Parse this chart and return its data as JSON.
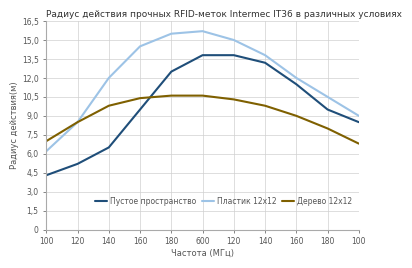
{
  "title": "Радиус действия прочных RFID-меток Intermec IT36 в различных условиях",
  "xlabel": "Частота (МГц)",
  "ylabel": "Радиус действия(м)",
  "xlim": [
    0,
    10
  ],
  "ylim": [
    0,
    16.5
  ],
  "ytick_vals": [
    0,
    1.5,
    3.0,
    4.5,
    6.0,
    7.5,
    9.0,
    10.5,
    12.0,
    13.5,
    15.0,
    16.5
  ],
  "ytick_labels": [
    "0",
    "1,5",
    "3,0",
    "4,5",
    "6,0",
    "7,5",
    "9,0",
    "10,5",
    "12,0",
    "13,5",
    "15,0",
    "16,5"
  ],
  "xtick_positions": [
    0,
    1,
    2,
    3,
    4,
    5,
    6,
    7,
    8,
    9,
    10
  ],
  "xtick_labels": [
    "100",
    "120",
    "140",
    "160",
    "180",
    "600",
    "120",
    "140",
    "160",
    "180",
    "100"
  ],
  "x_points": [
    0,
    1,
    2,
    3,
    4,
    5,
    6,
    7,
    8,
    9,
    10
  ],
  "series": [
    {
      "name": "Пустое пространство",
      "color": "#1f4e79",
      "linewidth": 1.5,
      "y": [
        4.3,
        5.2,
        6.5,
        9.5,
        12.5,
        13.8,
        13.8,
        13.2,
        11.5,
        9.5,
        8.5
      ]
    },
    {
      "name": "Пластик 12x12",
      "color": "#9dc3e6",
      "linewidth": 1.5,
      "y": [
        6.2,
        8.5,
        12.0,
        14.5,
        15.5,
        15.7,
        15.0,
        13.8,
        12.0,
        10.5,
        9.0
      ]
    },
    {
      "name": "Дерево 12x12",
      "color": "#7f6000",
      "linewidth": 1.5,
      "y": [
        7.0,
        8.5,
        9.8,
        10.4,
        10.6,
        10.6,
        10.3,
        9.8,
        9.0,
        8.0,
        6.8
      ]
    }
  ],
  "background_color": "#ffffff",
  "grid_color": "#d0d0d0",
  "title_fontsize": 6.5,
  "axis_fontsize": 6,
  "tick_fontsize": 5.5,
  "legend_fontsize": 5.5,
  "spine_color": "#aaaaaa"
}
